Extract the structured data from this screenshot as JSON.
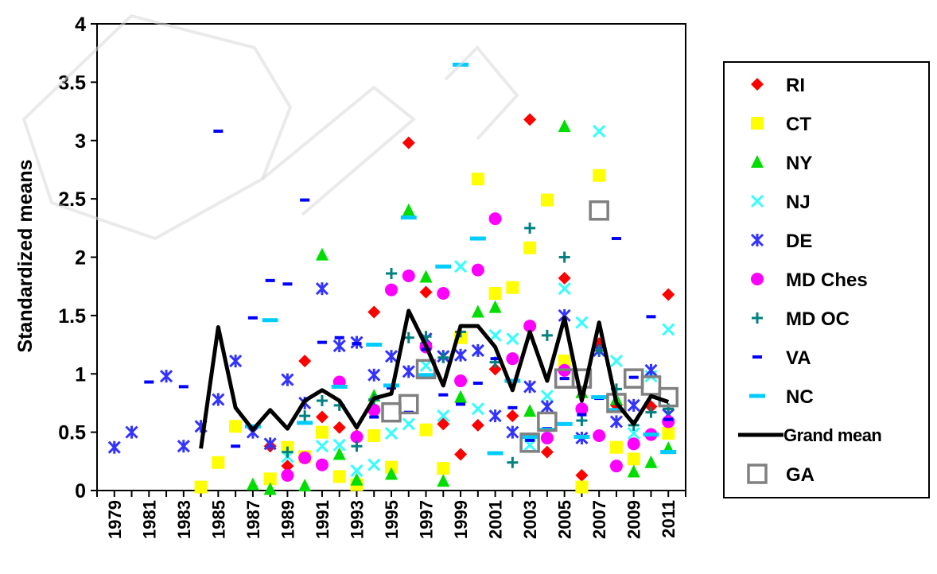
{
  "chart_data": {
    "type": "scatter",
    "title": "",
    "xlabel": "",
    "ylabel": "Standardized means",
    "ylim": [
      0,
      4
    ],
    "yticks": [
      "0",
      "0.5",
      "1",
      "1.5",
      "2",
      "2.5",
      "3",
      "3.5",
      "4"
    ],
    "xlim": [
      1978,
      2012
    ],
    "xticks": [
      "1979",
      "1981",
      "1983",
      "1985",
      "1987",
      "1989",
      "1991",
      "1993",
      "1995",
      "1997",
      "1999",
      "2001",
      "2003",
      "2005",
      "2007",
      "2009",
      "2011"
    ],
    "grid": false,
    "legend_position": "right",
    "series": [
      {
        "name": "RI",
        "marker": "diamond",
        "color": "#ff0000",
        "points": [
          [
            1988,
            0.38
          ],
          [
            1989,
            0.21
          ],
          [
            1990,
            1.11
          ],
          [
            1991,
            0.63
          ],
          [
            1992,
            0.54
          ],
          [
            1993,
            0.47
          ],
          [
            1994,
            1.53
          ],
          [
            1996,
            2.98
          ],
          [
            1997,
            1.7
          ],
          [
            1998,
            0.57
          ],
          [
            1999,
            0.31
          ],
          [
            2000,
            0.56
          ],
          [
            2001,
            1.04
          ],
          [
            2002,
            0.64
          ],
          [
            2003,
            3.18
          ],
          [
            2004,
            0.33
          ],
          [
            2005,
            1.82
          ],
          [
            2006,
            0.13
          ],
          [
            2007,
            1.26
          ],
          [
            2008,
            0.73
          ],
          [
            2010,
            0.72
          ],
          [
            2011,
            1.68
          ]
        ]
      },
      {
        "name": "CT",
        "marker": "square",
        "color": "#ffff00",
        "points": [
          [
            1984,
            0.03
          ],
          [
            1985,
            0.24
          ],
          [
            1986,
            0.55
          ],
          [
            1988,
            0.1
          ],
          [
            1989,
            0.37
          ],
          [
            1990,
            0.29
          ],
          [
            1991,
            0.5
          ],
          [
            1992,
            0.12
          ],
          [
            1993,
            0.05
          ],
          [
            1994,
            0.47
          ],
          [
            1995,
            0.2
          ],
          [
            1997,
            0.52
          ],
          [
            1998,
            0.19
          ],
          [
            1999,
            1.31
          ],
          [
            2000,
            2.67
          ],
          [
            2001,
            1.69
          ],
          [
            2002,
            1.74
          ],
          [
            2003,
            2.08
          ],
          [
            2004,
            2.49
          ],
          [
            2005,
            1.11
          ],
          [
            2006,
            0.03
          ],
          [
            2007,
            2.7
          ],
          [
            2008,
            0.37
          ],
          [
            2009,
            0.27
          ],
          [
            2011,
            0.49
          ]
        ]
      },
      {
        "name": "NY",
        "marker": "triangle",
        "color": "#00dd00",
        "points": [
          [
            1987,
            0.05
          ],
          [
            1988,
            0.01
          ],
          [
            1990,
            0.04
          ],
          [
            1991,
            2.02
          ],
          [
            1992,
            0.31
          ],
          [
            1993,
            0.09
          ],
          [
            1994,
            0.81
          ],
          [
            1995,
            0.14
          ],
          [
            1996,
            2.4
          ],
          [
            1997,
            1.83
          ],
          [
            1998,
            0.08
          ],
          [
            1999,
            0.8
          ],
          [
            2000,
            1.53
          ],
          [
            2001,
            1.57
          ],
          [
            2003,
            0.68
          ],
          [
            2005,
            3.12
          ],
          [
            2006,
            0.84
          ],
          [
            2008,
            0.78
          ],
          [
            2009,
            0.16
          ],
          [
            2010,
            0.24
          ],
          [
            2011,
            0.36
          ]
        ]
      },
      {
        "name": "NJ",
        "marker": "x",
        "color": "#33ffff",
        "points": [
          [
            1989,
            0.29
          ],
          [
            1991,
            0.38
          ],
          [
            1992,
            0.39
          ],
          [
            1993,
            0.17
          ],
          [
            1994,
            0.22
          ],
          [
            1995,
            0.49
          ],
          [
            1996,
            0.57
          ],
          [
            1997,
            1.07
          ],
          [
            1998,
            0.64
          ],
          [
            1999,
            1.92
          ],
          [
            2000,
            0.7
          ],
          [
            2001,
            1.33
          ],
          [
            2002,
            1.3
          ],
          [
            2003,
            0.39
          ],
          [
            2004,
            0.81
          ],
          [
            2005,
            1.73
          ],
          [
            2006,
            1.44
          ],
          [
            2007,
            3.08
          ],
          [
            2008,
            1.11
          ],
          [
            2009,
            0.49
          ],
          [
            2010,
            0.98
          ],
          [
            2011,
            1.38
          ]
        ]
      },
      {
        "name": "DE",
        "marker": "asterisk",
        "color": "#3333ff",
        "points": [
          [
            1979,
            0.37
          ],
          [
            1980,
            0.5
          ],
          [
            1982,
            0.98
          ],
          [
            1983,
            0.38
          ],
          [
            1984,
            0.55
          ],
          [
            1985,
            0.78
          ],
          [
            1986,
            1.11
          ],
          [
            1987,
            0.5
          ],
          [
            1988,
            0.4
          ],
          [
            1989,
            0.95
          ],
          [
            1990,
            0.75
          ],
          [
            1991,
            1.73
          ],
          [
            1992,
            1.24
          ],
          [
            1993,
            1.27
          ],
          [
            1994,
            0.99
          ],
          [
            1995,
            1.15
          ],
          [
            1996,
            1.02
          ],
          [
            1997,
            1.3
          ],
          [
            1998,
            1.15
          ],
          [
            1999,
            1.16
          ],
          [
            2000,
            1.2
          ],
          [
            2001,
            0.64
          ],
          [
            2002,
            0.5
          ],
          [
            2003,
            0.89
          ],
          [
            2004,
            0.72
          ],
          [
            2005,
            1.5
          ],
          [
            2006,
            0.45
          ],
          [
            2007,
            1.2
          ],
          [
            2008,
            0.59
          ],
          [
            2009,
            0.73
          ],
          [
            2010,
            1.03
          ],
          [
            2011,
            0.65
          ]
        ]
      },
      {
        "name": "MD Ches",
        "marker": "circle",
        "color": "#ff00ff",
        "points": [
          [
            1989,
            0.13
          ],
          [
            1990,
            0.28
          ],
          [
            1991,
            0.22
          ],
          [
            1992,
            0.93
          ],
          [
            1993,
            0.46
          ],
          [
            1994,
            0.69
          ],
          [
            1995,
            1.72
          ],
          [
            1996,
            1.84
          ],
          [
            1997,
            1.23
          ],
          [
            1998,
            1.69
          ],
          [
            1999,
            0.94
          ],
          [
            2000,
            1.89
          ],
          [
            2001,
            2.33
          ],
          [
            2002,
            1.13
          ],
          [
            2003,
            1.41
          ],
          [
            2004,
            0.45
          ],
          [
            2005,
            1.03
          ],
          [
            2006,
            0.7
          ],
          [
            2007,
            0.47
          ],
          [
            2008,
            0.21
          ],
          [
            2009,
            0.4
          ],
          [
            2010,
            0.48
          ],
          [
            2011,
            0.59
          ]
        ]
      },
      {
        "name": "MD OC",
        "marker": "plus",
        "color": "#008080",
        "points": [
          [
            1989,
            0.33
          ],
          [
            1990,
            0.64
          ],
          [
            1991,
            0.77
          ],
          [
            1992,
            0.73
          ],
          [
            1993,
            0.38
          ],
          [
            1994,
            0.78
          ],
          [
            1995,
            1.86
          ],
          [
            1996,
            1.31
          ],
          [
            1997,
            1.32
          ],
          [
            1998,
            1.14
          ],
          [
            1999,
            1.36
          ],
          [
            2001,
            1.1
          ],
          [
            2002,
            0.24
          ],
          [
            2003,
            2.25
          ],
          [
            2004,
            1.33
          ],
          [
            2005,
            2.0
          ],
          [
            2006,
            0.6
          ],
          [
            2007,
            1.2
          ],
          [
            2008,
            0.87
          ],
          [
            2009,
            0.56
          ],
          [
            2010,
            0.67
          ],
          [
            2011,
            0.7
          ]
        ]
      },
      {
        "name": "VA",
        "marker": "dash-small",
        "color": "#0000ff",
        "points": [
          [
            1981,
            0.93
          ],
          [
            1983,
            0.89
          ],
          [
            1985,
            3.08
          ],
          [
            1986,
            0.38
          ],
          [
            1987,
            1.48
          ],
          [
            1988,
            1.8
          ],
          [
            1989,
            1.77
          ],
          [
            1990,
            2.49
          ],
          [
            1991,
            1.27
          ],
          [
            1992,
            1.31
          ],
          [
            1993,
            1.26
          ],
          [
            1994,
            0.63
          ],
          [
            1995,
            0.88
          ],
          [
            1996,
            0.67
          ],
          [
            1997,
            1.21
          ],
          [
            1998,
            0.82
          ],
          [
            1999,
            0.74
          ],
          [
            2000,
            0.92
          ],
          [
            2001,
            1.13
          ],
          [
            2002,
            0.71
          ],
          [
            2003,
            0.43
          ],
          [
            2004,
            0.53
          ],
          [
            2005,
            0.96
          ],
          [
            2006,
            0.65
          ],
          [
            2007,
            0.79
          ],
          [
            2008,
            2.16
          ],
          [
            2009,
            0.97
          ],
          [
            2010,
            1.49
          ],
          [
            2011,
            0.61
          ]
        ]
      },
      {
        "name": "NC",
        "marker": "dash",
        "color": "#00ccff",
        "points": [
          [
            1987,
            0.55
          ],
          [
            1988,
            1.46
          ],
          [
            1990,
            0.58
          ],
          [
            1992,
            0.89
          ],
          [
            1994,
            1.25
          ],
          [
            1995,
            0.9
          ],
          [
            1996,
            2.34
          ],
          [
            1997,
            0.99
          ],
          [
            1998,
            1.92
          ],
          [
            1999,
            3.65
          ],
          [
            2000,
            2.16
          ],
          [
            2001,
            0.32
          ],
          [
            2002,
            0.94
          ],
          [
            2003,
            0.46
          ],
          [
            2004,
            0.52
          ],
          [
            2005,
            0.57
          ],
          [
            2006,
            0.46
          ],
          [
            2007,
            0.8
          ],
          [
            2008,
            0.69
          ],
          [
            2010,
            0.48
          ],
          [
            2011,
            0.33
          ]
        ]
      },
      {
        "name": "GA",
        "marker": "open-square",
        "color": "#808080",
        "points": [
          [
            1995,
            0.67
          ],
          [
            1996,
            0.74
          ],
          [
            1997,
            1.04
          ],
          [
            2003,
            0.41
          ],
          [
            2004,
            0.59
          ],
          [
            2005,
            0.96
          ],
          [
            2006,
            0.96
          ],
          [
            2007,
            2.4
          ],
          [
            2008,
            0.75
          ],
          [
            2009,
            0.96
          ],
          [
            2010,
            0.9
          ],
          [
            2011,
            0.8
          ]
        ]
      }
    ],
    "grand_mean": {
      "name": "Grand mean",
      "color": "#000000",
      "x": [
        1984,
        1985,
        1986,
        1987,
        1988,
        1989,
        1990,
        1991,
        1992,
        1993,
        1994,
        1995,
        1996,
        1997,
        1998,
        1999,
        2000,
        2001,
        2002,
        2003,
        2004,
        2005,
        2006,
        2007,
        2008,
        2009,
        2010,
        2011
      ],
      "y": [
        0.36,
        1.4,
        0.71,
        0.52,
        0.69,
        0.53,
        0.77,
        0.86,
        0.77,
        0.54,
        0.79,
        0.83,
        1.54,
        1.24,
        0.9,
        1.41,
        1.41,
        1.23,
        0.86,
        1.36,
        0.94,
        1.48,
        0.77,
        1.44,
        0.75,
        0.57,
        0.81,
        0.76
      ]
    }
  }
}
